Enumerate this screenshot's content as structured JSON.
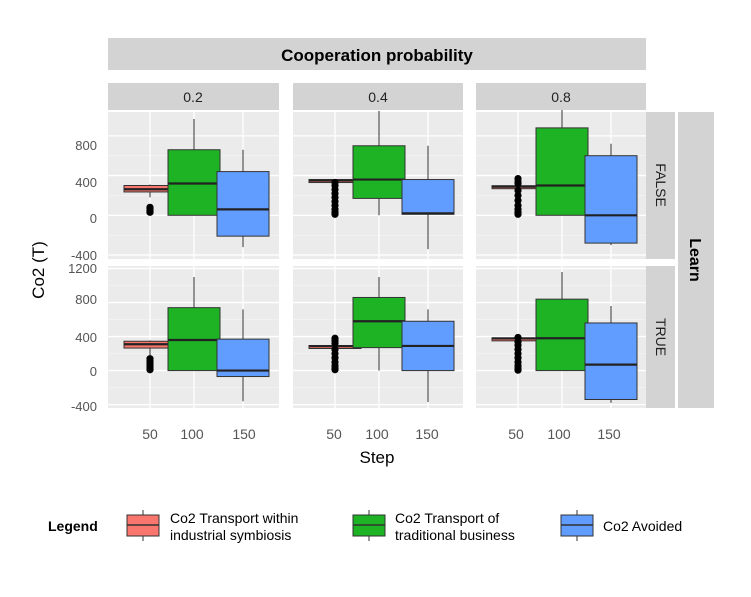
{
  "chart_data": {
    "type": "boxplot",
    "title": "Cooperation probability",
    "xlabel": "Step",
    "ylabel": "Co2 (T)",
    "row_facet_title": "Learn",
    "column_facets": [
      "0.2",
      "0.4",
      "0.8"
    ],
    "row_facets": [
      "FALSE",
      "TRUE"
    ],
    "categories": [
      "50",
      "100",
      "150"
    ],
    "x_tick_labels": [
      "50",
      "100",
      "150"
    ],
    "y_tick_labels_top": [
      "800",
      "400",
      "0",
      "-400"
    ],
    "y_tick_labels_bottom": [
      "1200",
      "800",
      "400",
      "0",
      "-400"
    ],
    "ylim_top": [
      -440,
      1040
    ],
    "ylim_bottom": [
      -440,
      1230
    ],
    "grid": true,
    "legend": {
      "title": "Legend",
      "position": "bottom",
      "entries": [
        {
          "line1": "Co2 Transport within",
          "line2": "industrial symbiosis"
        },
        {
          "line1": "Co2 Transport of",
          "line2": "traditional business"
        },
        {
          "line1": "Co2 Avoided",
          "line2": ""
        }
      ]
    },
    "colors": {
      "within": "#f8766d",
      "traditional": "#1db325",
      "avoided": "#619cff",
      "panel": "#ebebeb",
      "strip": "#d3d3d3"
    },
    "series": [
      {
        "name": "Co2 Transport within industrial symbiosis",
        "key": "within",
        "boxes": [
          {
            "col": 0,
            "row": 0,
            "q1": 235,
            "median": 262,
            "q3": 300,
            "wlo": 180,
            "whi": 310,
            "out": [
              80,
              65,
              50,
              40,
              30
            ]
          },
          {
            "col": 1,
            "row": 0,
            "q1": 340,
            "median": 350,
            "q3": 360,
            "wlo": 340,
            "whi": 360,
            "out": [
              330,
              300,
              260,
              220,
              180,
              140,
              100,
              60,
              30,
              10
            ]
          },
          {
            "col": 2,
            "row": 0,
            "q1": 280,
            "median": 288,
            "q3": 298,
            "wlo": 280,
            "whi": 300,
            "out": [
              370,
              340,
              320,
              250,
              200,
              150,
              100,
              60,
              30,
              10
            ]
          },
          {
            "col": 0,
            "row": 1,
            "q1": 265,
            "median": 310,
            "q3": 345,
            "wlo": 170,
            "whi": 355,
            "out": [
              140,
              110,
              80,
              50,
              30,
              10
            ]
          },
          {
            "col": 1,
            "row": 1,
            "q1": 280,
            "median": 287,
            "q3": 295,
            "wlo": 280,
            "whi": 300,
            "out": [
              380,
              350,
              320,
              250,
              200,
              150,
              100,
              60,
              30,
              10
            ]
          },
          {
            "col": 2,
            "row": 1,
            "q1": 370,
            "median": 378,
            "q3": 385,
            "wlo": 370,
            "whi": 390,
            "out": [
              390,
              340,
              300,
              250,
              200,
              150,
              100,
              60,
              30,
              5
            ]
          }
        ]
      },
      {
        "name": "Co2 Transport of traditional business",
        "key": "traditional",
        "boxes": [
          {
            "col": 0,
            "row": 0,
            "q1": 0,
            "median": 320,
            "q3": 660,
            "wlo": 0,
            "whi": 970,
            "out": []
          },
          {
            "col": 1,
            "row": 0,
            "q1": 170,
            "median": 360,
            "q3": 700,
            "wlo": 0,
            "whi": 1050,
            "out": []
          },
          {
            "col": 2,
            "row": 0,
            "q1": 0,
            "median": 300,
            "q3": 880,
            "wlo": 0,
            "whi": 1060,
            "out": []
          },
          {
            "col": 0,
            "row": 1,
            "q1": 0,
            "median": 360,
            "q3": 740,
            "wlo": 0,
            "whi": 1100,
            "out": []
          },
          {
            "col": 1,
            "row": 1,
            "q1": 270,
            "median": 580,
            "q3": 860,
            "wlo": 0,
            "whi": 1100,
            "out": []
          },
          {
            "col": 2,
            "row": 1,
            "q1": 0,
            "median": 380,
            "q3": 840,
            "wlo": 0,
            "whi": 1160,
            "out": []
          }
        ]
      },
      {
        "name": "Co2 Avoided",
        "key": "avoided",
        "boxes": [
          {
            "col": 0,
            "row": 0,
            "q1": -210,
            "median": 60,
            "q3": 440,
            "wlo": -320,
            "whi": 660,
            "out": []
          },
          {
            "col": 1,
            "row": 0,
            "q1": 10,
            "median": 20,
            "q3": 360,
            "wlo": -340,
            "whi": 700,
            "out": []
          },
          {
            "col": 2,
            "row": 0,
            "q1": -280,
            "median": 0,
            "q3": 600,
            "wlo": -300,
            "whi": 720,
            "out": []
          },
          {
            "col": 0,
            "row": 1,
            "q1": -70,
            "median": 0,
            "q3": 370,
            "wlo": -360,
            "whi": 720,
            "out": []
          },
          {
            "col": 1,
            "row": 1,
            "q1": 0,
            "median": 290,
            "q3": 580,
            "wlo": -370,
            "whi": 720,
            "out": []
          },
          {
            "col": 2,
            "row": 1,
            "q1": -340,
            "median": 70,
            "q3": 560,
            "wlo": -380,
            "whi": 760,
            "out": []
          }
        ]
      }
    ]
  }
}
